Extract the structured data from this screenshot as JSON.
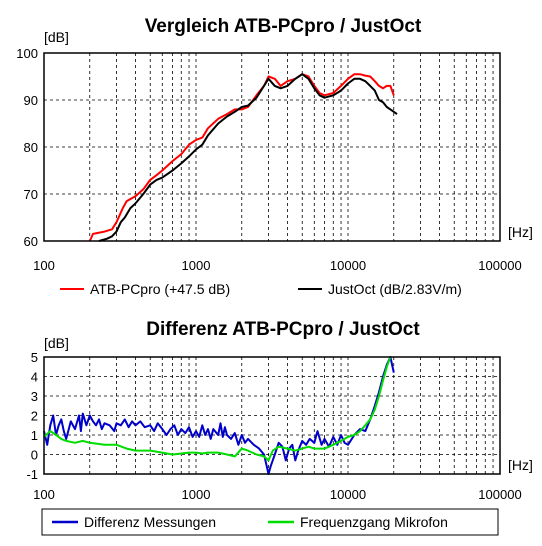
{
  "chart_data": [
    {
      "type": "line",
      "title": "Vergleich ATB-PCpro / JustOct",
      "ylabel": "[dB]",
      "xlabel": "[Hz]",
      "xscale": "log",
      "xlim": [
        100,
        100000
      ],
      "ylim": [
        60,
        100
      ],
      "xticks": [
        "100",
        "1000",
        "10000",
        "100000"
      ],
      "yticks": [
        "60",
        "70",
        "80",
        "90",
        "100"
      ],
      "grid": true,
      "legend_position": "bottom",
      "series": [
        {
          "name": "ATB-PCpro (+47.5 dB)",
          "color": "#ff0000",
          "points": [
            [
              200,
              60
            ],
            [
              210,
              61.5
            ],
            [
              250,
              62
            ],
            [
              280,
              62.5
            ],
            [
              300,
              64
            ],
            [
              330,
              67
            ],
            [
              350,
              68.5
            ],
            [
              400,
              69.5
            ],
            [
              450,
              71
            ],
            [
              500,
              73
            ],
            [
              550,
              74
            ],
            [
              600,
              75
            ],
            [
              700,
              77
            ],
            [
              800,
              78.5
            ],
            [
              900,
              80.5
            ],
            [
              1000,
              81.5
            ],
            [
              1100,
              82
            ],
            [
              1200,
              84
            ],
            [
              1400,
              86
            ],
            [
              1600,
              87
            ],
            [
              1800,
              88
            ],
            [
              2000,
              88
            ],
            [
              2200,
              88.5
            ],
            [
              2500,
              91
            ],
            [
              2800,
              93
            ],
            [
              3000,
              95
            ],
            [
              3300,
              94.5
            ],
            [
              3600,
              93
            ],
            [
              4000,
              94
            ],
            [
              4500,
              94.5
            ],
            [
              5000,
              95.5
            ],
            [
              5500,
              95
            ],
            [
              6000,
              93
            ],
            [
              6500,
              91.5
            ],
            [
              7000,
              91
            ],
            [
              8000,
              91.5
            ],
            [
              9000,
              93
            ],
            [
              10000,
              94.5
            ],
            [
              11000,
              95.5
            ],
            [
              12000,
              95.5
            ],
            [
              13000,
              95.2
            ],
            [
              14000,
              95
            ],
            [
              15000,
              94
            ],
            [
              16000,
              93
            ],
            [
              17000,
              92.5
            ],
            [
              18000,
              93
            ],
            [
              19000,
              93
            ],
            [
              20000,
              91
            ]
          ]
        },
        {
          "name": "JustOct (dB/2.83V/m)",
          "color": "#000000",
          "points": [
            [
              230,
              60
            ],
            [
              260,
              60.5
            ],
            [
              280,
              61
            ],
            [
              300,
              62
            ],
            [
              320,
              64
            ],
            [
              340,
              65
            ],
            [
              370,
              67
            ],
            [
              400,
              68
            ],
            [
              450,
              70
            ],
            [
              500,
              72
            ],
            [
              550,
              73
            ],
            [
              600,
              73.5
            ],
            [
              700,
              75
            ],
            [
              800,
              76.5
            ],
            [
              900,
              78
            ],
            [
              1000,
              79.5
            ],
            [
              1100,
              80.5
            ],
            [
              1200,
              82.5
            ],
            [
              1400,
              85
            ],
            [
              1600,
              86.5
            ],
            [
              1800,
              87.5
            ],
            [
              2000,
              88.5
            ],
            [
              2200,
              88.8
            ],
            [
              2500,
              90.5
            ],
            [
              2800,
              93
            ],
            [
              3000,
              94.5
            ],
            [
              3300,
              93
            ],
            [
              3600,
              92.5
            ],
            [
              4000,
              93
            ],
            [
              4500,
              94.5
            ],
            [
              5000,
              95.5
            ],
            [
              5500,
              94.5
            ],
            [
              6000,
              92.5
            ],
            [
              6500,
              91
            ],
            [
              7000,
              90.5
            ],
            [
              8000,
              91
            ],
            [
              9000,
              92
            ],
            [
              10000,
              93.5
            ],
            [
              11000,
              94.5
            ],
            [
              12000,
              94.5
            ],
            [
              13000,
              94
            ],
            [
              14000,
              93
            ],
            [
              15000,
              92
            ],
            [
              16000,
              90
            ],
            [
              17000,
              89.5
            ],
            [
              18000,
              88.5
            ],
            [
              19000,
              88
            ],
            [
              20000,
              87.5
            ],
            [
              21000,
              87
            ]
          ]
        }
      ]
    },
    {
      "type": "line",
      "title": "Differenz ATB-PCpro / JustOct",
      "ylabel": "[dB]",
      "xlabel": "[Hz]",
      "xscale": "log",
      "xlim": [
        100,
        100000
      ],
      "ylim": [
        -1,
        5
      ],
      "xticks": [
        "100",
        "1000",
        "10000",
        "100000"
      ],
      "yticks": [
        "-1",
        "0",
        "1",
        "2",
        "3",
        "4",
        "5"
      ],
      "grid": true,
      "legend_position": "bottom",
      "series": [
        {
          "name": "Differenz Messungen",
          "color": "#0000cc",
          "points": [
            [
              100,
              1.2
            ],
            [
              105,
              0.5
            ],
            [
              110,
              1.5
            ],
            [
              115,
              2.0
            ],
            [
              120,
              1.0
            ],
            [
              125,
              1.5
            ],
            [
              130,
              1.8
            ],
            [
              135,
              1.2
            ],
            [
              140,
              0.8
            ],
            [
              150,
              1.7
            ],
            [
              160,
              1.3
            ],
            [
              170,
              2.0
            ],
            [
              175,
              1.2
            ],
            [
              180,
              2.1
            ],
            [
              190,
              1.5
            ],
            [
              200,
              2.0
            ],
            [
              210,
              1.7
            ],
            [
              220,
              1.5
            ],
            [
              230,
              1.8
            ],
            [
              240,
              1.3
            ],
            [
              250,
              1.6
            ],
            [
              270,
              1.5
            ],
            [
              290,
              1.2
            ],
            [
              300,
              1.6
            ],
            [
              320,
              1.5
            ],
            [
              340,
              1.8
            ],
            [
              360,
              1.4
            ],
            [
              380,
              1.7
            ],
            [
              400,
              1.5
            ],
            [
              430,
              1.7
            ],
            [
              460,
              1.4
            ],
            [
              500,
              1.5
            ],
            [
              530,
              1.2
            ],
            [
              560,
              1.6
            ],
            [
              600,
              1.3
            ],
            [
              640,
              1.0
            ],
            [
              680,
              1.3
            ],
            [
              720,
              1.5
            ],
            [
              760,
              1.0
            ],
            [
              800,
              1.3
            ],
            [
              850,
              1.1
            ],
            [
              900,
              1.4
            ],
            [
              950,
              0.9
            ],
            [
              1000,
              1.2
            ],
            [
              1050,
              0.9
            ],
            [
              1100,
              1.5
            ],
            [
              1150,
              1.0
            ],
            [
              1200,
              1.3
            ],
            [
              1250,
              0.8
            ],
            [
              1300,
              1.3
            ],
            [
              1400,
              1.0
            ],
            [
              1450,
              1.6
            ],
            [
              1500,
              0.9
            ],
            [
              1550,
              1.4
            ],
            [
              1600,
              1.0
            ],
            [
              1700,
              0.8
            ],
            [
              1800,
              1.1
            ],
            [
              1900,
              0.5
            ],
            [
              2000,
              1.0
            ],
            [
              2100,
              0.6
            ],
            [
              2200,
              0.8
            ],
            [
              2400,
              0.5
            ],
            [
              2600,
              0.3
            ],
            [
              2800,
              0.0
            ],
            [
              2900,
              -0.5
            ],
            [
              3000,
              -1.0
            ],
            [
              3100,
              -0.6
            ],
            [
              3300,
              0.0
            ],
            [
              3500,
              0.6
            ],
            [
              3700,
              0.4
            ],
            [
              3900,
              -0.3
            ],
            [
              4100,
              0.3
            ],
            [
              4300,
              0.5
            ],
            [
              4500,
              -0.3
            ],
            [
              4700,
              0.2
            ],
            [
              5000,
              0.7
            ],
            [
              5300,
              0.5
            ],
            [
              5600,
              0.8
            ],
            [
              6000,
              0.6
            ],
            [
              6300,
              1.2
            ],
            [
              6700,
              0.5
            ],
            [
              7000,
              0.8
            ],
            [
              7500,
              0.4
            ],
            [
              8000,
              0.9
            ],
            [
              8500,
              0.5
            ],
            [
              9000,
              1.0
            ],
            [
              9500,
              0.6
            ],
            [
              10000,
              0.5
            ],
            [
              11000,
              1.0
            ],
            [
              12000,
              1.3
            ],
            [
              13000,
              1.2
            ],
            [
              14000,
              1.8
            ],
            [
              15000,
              2.5
            ],
            [
              16000,
              3.2
            ],
            [
              17000,
              4.0
            ],
            [
              18000,
              4.6
            ],
            [
              19000,
              5.0
            ],
            [
              20000,
              4.2
            ]
          ]
        },
        {
          "name": "Frequenzgang Mikrofon",
          "color": "#00dd00",
          "points": [
            [
              100,
              0.9
            ],
            [
              110,
              1.2
            ],
            [
              120,
              1.0
            ],
            [
              130,
              0.8
            ],
            [
              140,
              0.7
            ],
            [
              160,
              0.6
            ],
            [
              180,
              0.7
            ],
            [
              200,
              0.6
            ],
            [
              250,
              0.5
            ],
            [
              300,
              0.5
            ],
            [
              350,
              0.3
            ],
            [
              400,
              0.2
            ],
            [
              500,
              0.2
            ],
            [
              600,
              0.1
            ],
            [
              700,
              0.0
            ],
            [
              800,
              0.05
            ],
            [
              900,
              0.1
            ],
            [
              1000,
              0.1
            ],
            [
              1100,
              0.05
            ],
            [
              1200,
              0.1
            ],
            [
              1400,
              0.1
            ],
            [
              1600,
              0.0
            ],
            [
              1800,
              -0.1
            ],
            [
              2000,
              0.3
            ],
            [
              2200,
              0.2
            ],
            [
              2500,
              0.0
            ],
            [
              2800,
              -0.1
            ],
            [
              3000,
              -0.3
            ],
            [
              3200,
              0.2
            ],
            [
              3500,
              0.4
            ],
            [
              4000,
              0.3
            ],
            [
              4500,
              0.2
            ],
            [
              5000,
              0.3
            ],
            [
              5500,
              0.4
            ],
            [
              6000,
              0.3
            ],
            [
              7000,
              0.3
            ],
            [
              8000,
              0.5
            ],
            [
              9000,
              0.7
            ],
            [
              10000,
              0.9
            ],
            [
              11000,
              1.0
            ],
            [
              12000,
              1.2
            ],
            [
              13000,
              1.5
            ],
            [
              14000,
              1.8
            ],
            [
              15000,
              2.3
            ],
            [
              16000,
              3.0
            ],
            [
              17000,
              3.8
            ],
            [
              18000,
              4.5
            ],
            [
              19000,
              5.0
            ]
          ]
        }
      ]
    }
  ]
}
